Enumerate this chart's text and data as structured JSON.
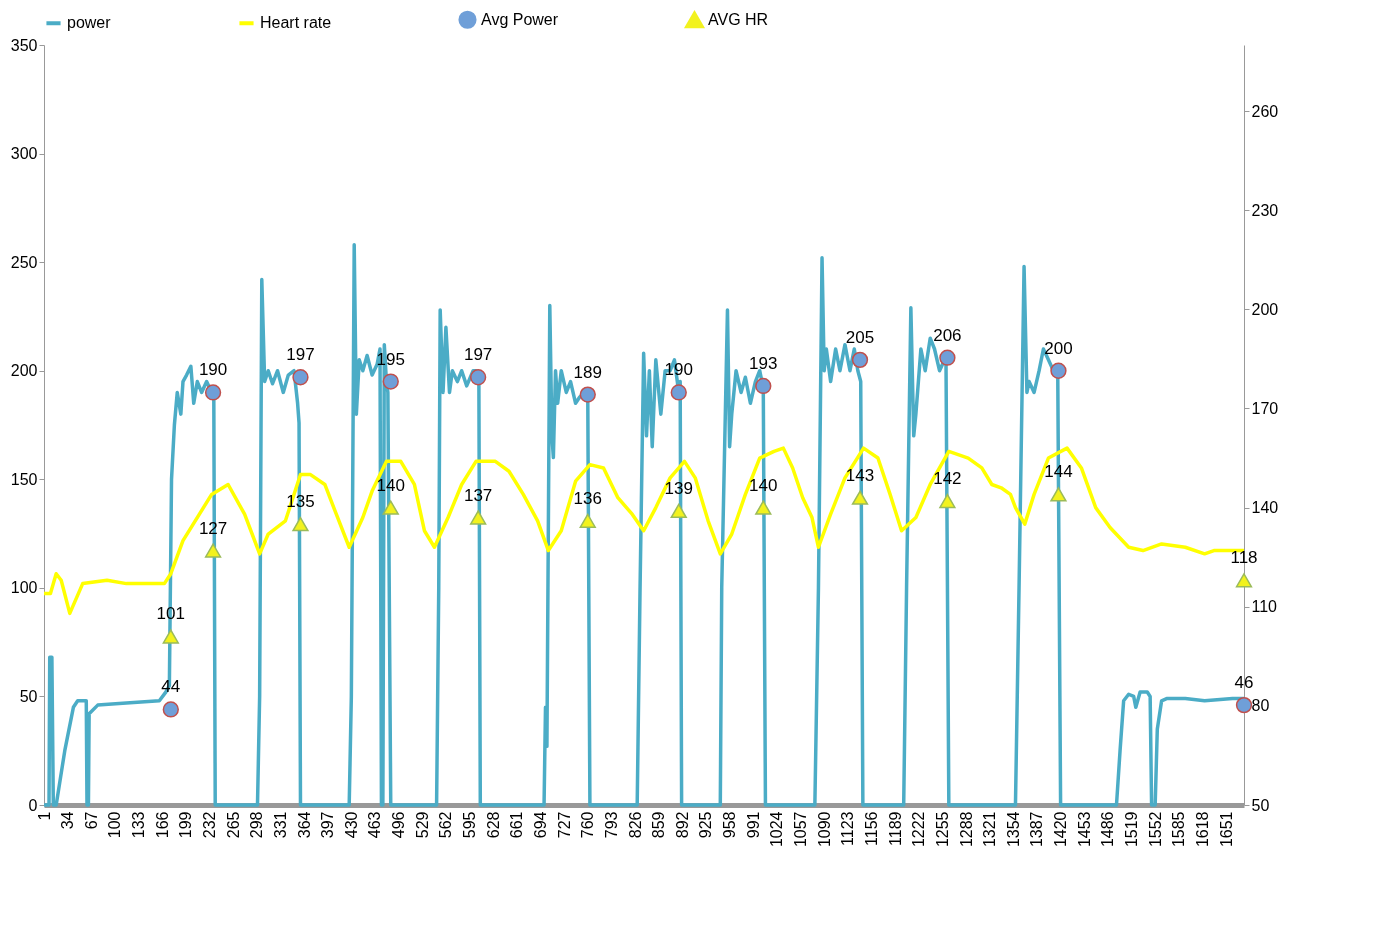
{
  "chart_data": {
    "type": "line",
    "xlim": [
      1,
      1676
    ],
    "xticks": [
      1,
      34,
      67,
      100,
      133,
      166,
      199,
      232,
      265,
      298,
      331,
      364,
      397,
      430,
      463,
      496,
      529,
      562,
      595,
      628,
      661,
      694,
      727,
      760,
      793,
      826,
      859,
      892,
      925,
      958,
      991,
      1024,
      1057,
      1090,
      1123,
      1156,
      1189,
      1222,
      1255,
      1288,
      1321,
      1354,
      1387,
      1420,
      1453,
      1486,
      1519,
      1552,
      1585,
      1618,
      1651
    ],
    "ylim": [
      0,
      350
    ],
    "yticks": [
      0,
      50,
      100,
      150,
      200,
      250,
      300,
      350
    ],
    "y2lim": [
      50,
      280
    ],
    "y2ticks": [
      50,
      80,
      110,
      140,
      170,
      200,
      230,
      260
    ],
    "grid": false,
    "legend": "top",
    "series": [
      {
        "name": "power",
        "color": "#4bacc6",
        "x": [
          1,
          8,
          9,
          12,
          14,
          18,
          30,
          42,
          48,
          60,
          61,
          63,
          64,
          76,
          116,
          162,
          171,
          176,
          179,
          183,
          187,
          192,
          195,
          200,
          206,
          210,
          215,
          221,
          228,
          235,
          238,
          240,
          299,
          302,
          305,
          309,
          314,
          320,
          327,
          335,
          342,
          350,
          355,
          357,
          359,
          427,
          430,
          434,
          437,
          441,
          446,
          452,
          459,
          466,
          470,
          472,
          474,
          476,
          479,
          481,
          485,
          549,
          552,
          554,
          558,
          562,
          567,
          571,
          578,
          584,
          591,
          600,
          604,
          608,
          610,
          699,
          701,
          703,
          707,
          710,
          712,
          715,
          718,
          723,
          730,
          736,
          743,
          749,
          757,
          760,
          763,
          829,
          833,
          838,
          842,
          846,
          850,
          855,
          862,
          868,
          875,
          881,
          887,
          889,
          891,
          945,
          947,
          955,
          958,
          961,
          967,
          974,
          980,
          987,
          994,
          1000,
          1005,
          1008,
          1077,
          1082,
          1087,
          1090,
          1093,
          1099,
          1106,
          1112,
          1119,
          1126,
          1132,
          1137,
          1141,
          1144,
          1201,
          1205,
          1211,
          1215,
          1218,
          1225,
          1231,
          1238,
          1244,
          1251,
          1258,
          1260,
          1264,
          1357,
          1362,
          1369,
          1373,
          1376,
          1383,
          1390,
          1396,
          1403,
          1410,
          1416,
          1420,
          1498,
          1503,
          1508,
          1515,
          1522,
          1525,
          1531,
          1541,
          1545,
          1547,
          1552,
          1555,
          1561,
          1568,
          1594,
          1621,
          1660,
          1676
        ],
        "values": [
          0,
          0,
          68,
          68,
          0,
          0,
          25,
          45,
          48,
          48,
          0,
          0,
          42,
          46,
          47,
          48,
          52,
          55,
          150,
          175,
          190,
          180,
          195,
          198,
          202,
          185,
          195,
          190,
          195,
          190,
          190,
          0,
          0,
          50,
          242,
          195,
          200,
          194,
          200,
          190,
          198,
          200,
          185,
          176,
          0,
          0,
          50,
          258,
          180,
          205,
          200,
          207,
          198,
          203,
          210,
          0,
          0,
          212,
          195,
          190,
          0,
          0,
          100,
          228,
          190,
          220,
          190,
          200,
          195,
          200,
          193,
          200,
          200,
          197,
          0,
          0,
          45,
          27,
          230,
          170,
          160,
          200,
          185,
          200,
          190,
          195,
          185,
          188,
          190,
          189,
          0,
          0,
          100,
          208,
          170,
          200,
          165,
          205,
          180,
          200,
          200,
          205,
          190,
          195,
          0,
          0,
          100,
          228,
          165,
          180,
          200,
          190,
          197,
          185,
          195,
          200,
          192,
          0,
          0,
          100,
          252,
          200,
          210,
          195,
          210,
          200,
          212,
          200,
          210,
          200,
          195,
          0,
          0,
          100,
          229,
          170,
          180,
          210,
          200,
          215,
          210,
          200,
          205,
          206,
          0,
          0,
          100,
          248,
          190,
          195,
          190,
          200,
          210,
          205,
          200,
          200,
          0,
          0,
          25,
          48,
          51,
          50,
          45,
          52,
          52,
          50,
          0,
          0,
          35,
          48,
          49,
          49,
          48,
          49,
          49
        ]
      },
      {
        "name": "Heart rate",
        "axis": "y2",
        "color": "#ffff00",
        "x": [
          1,
          10,
          18,
          25,
          37,
          55,
          89,
          116,
          169,
          178,
          195,
          235,
          258,
          281,
          302,
          314,
          338,
          359,
          373,
          393,
          409,
          427,
          446,
          459,
          479,
          499,
          518,
          532,
          546,
          565,
          584,
          604,
          631,
          650,
          670,
          690,
          705,
          723,
          743,
          763,
          782,
          802,
          822,
          838,
          855,
          875,
          895,
          910,
          928,
          945,
          961,
          980,
          1000,
          1020,
          1033,
          1046,
          1060,
          1073,
          1082,
          1099,
          1119,
          1145,
          1165,
          1182,
          1198,
          1218,
          1238,
          1264,
          1291,
          1310,
          1324,
          1337,
          1350,
          1357,
          1370,
          1383,
          1403,
          1429,
          1449,
          1469,
          1489,
          1515,
          1535,
          1561,
          1594,
          1621,
          1634,
          1660,
          1676
        ],
        "values": [
          114,
          114,
          120,
          118,
          108,
          117,
          118,
          117,
          117,
          120,
          130,
          144,
          147,
          138,
          126,
          132,
          136,
          150,
          150,
          147,
          138,
          128,
          137,
          145,
          154,
          154,
          147,
          133,
          128,
          137,
          147,
          154,
          154,
          151,
          144,
          136,
          127,
          133,
          148,
          153,
          152,
          143,
          138,
          133,
          140,
          149,
          154,
          149,
          136,
          126,
          132,
          144,
          155,
          157,
          158,
          152,
          143,
          137,
          128,
          138,
          149,
          158,
          155,
          144,
          133,
          137,
          147,
          157,
          155,
          152,
          147,
          146,
          144,
          140,
          135,
          144,
          155,
          158,
          152,
          140,
          134,
          128,
          127,
          129,
          128,
          126,
          127,
          127,
          127
        ]
      },
      {
        "name": "Avg Power",
        "type": "scatter",
        "marker": "circle",
        "color": "#6f9fd8",
        "x": [
          178,
          237,
          359,
          485,
          607,
          760,
          887,
          1005,
          1140,
          1262,
          1417,
          1676
        ],
        "values": [
          44,
          190,
          197,
          195,
          197,
          189,
          190,
          193,
          205,
          206,
          200,
          46
        ],
        "value_labels": [
          "44",
          "190",
          "197",
          "195",
          "197",
          "189",
          "190",
          "193",
          "205",
          "206",
          "200",
          "46"
        ]
      },
      {
        "name": "AVG HR",
        "type": "scatter",
        "marker": "triangle",
        "axis": "y2",
        "color": "#f2f21e",
        "x": [
          178,
          237,
          359,
          485,
          607,
          760,
          887,
          1005,
          1140,
          1262,
          1417,
          1676
        ],
        "values": [
          101,
          127,
          135,
          140,
          137,
          136,
          139,
          140,
          143,
          142,
          144,
          118
        ],
        "value_labels": [
          "101",
          "127",
          "135",
          "140",
          "137",
          "136",
          "139",
          "140",
          "143",
          "142",
          "144",
          "118"
        ]
      }
    ]
  }
}
